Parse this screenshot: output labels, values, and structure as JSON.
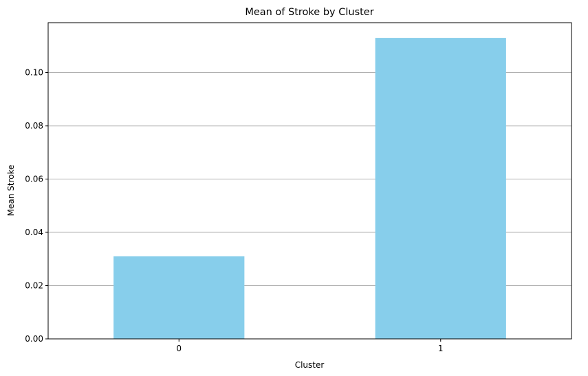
{
  "chart_data": {
    "type": "bar",
    "title": "Mean of Stroke by Cluster",
    "xlabel": "Cluster",
    "ylabel": "Mean Stroke",
    "categories": [
      "0",
      "1"
    ],
    "values": [
      0.031,
      0.113
    ],
    "ylim": [
      0,
      0.1187
    ],
    "yticks": [
      0.0,
      0.02,
      0.04,
      0.06,
      0.08,
      0.1
    ],
    "ytick_labels": [
      "0.00",
      "0.02",
      "0.04",
      "0.06",
      "0.08",
      "0.10"
    ],
    "grid": "y-major",
    "bar_color": "#87ceeb",
    "grid_color": "#b0b0b0"
  }
}
